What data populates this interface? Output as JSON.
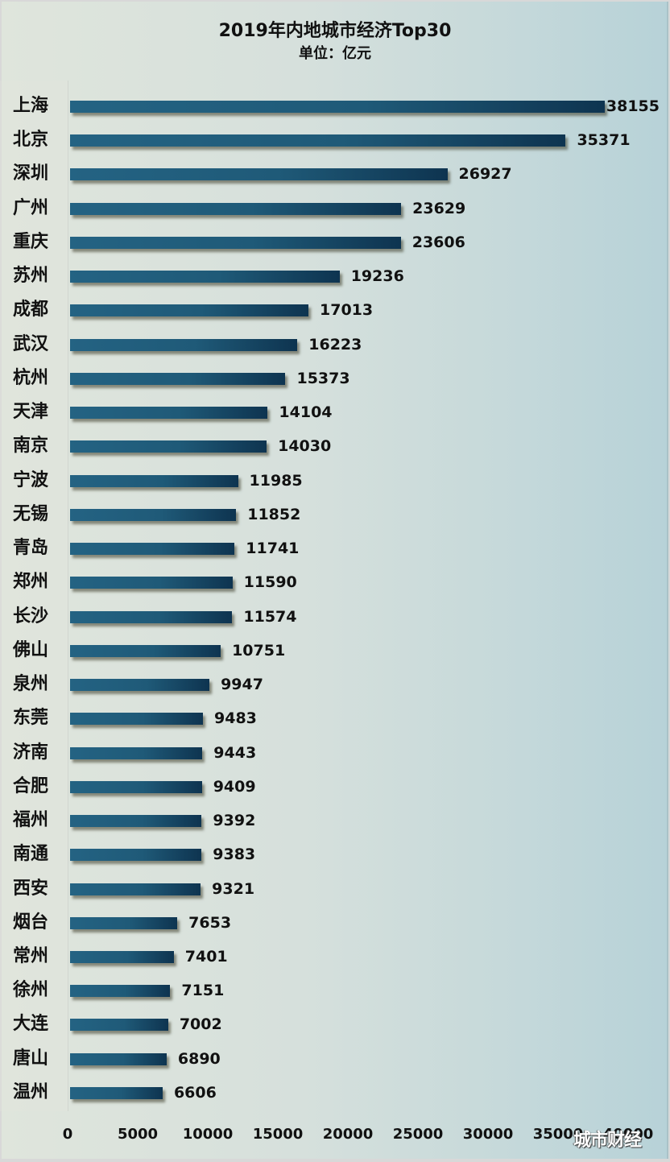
{
  "chart": {
    "title": "2019年内地城市经济Top30",
    "subtitle": "单位：亿元",
    "watermark": "城市财经"
  },
  "colors": {
    "bar_start": "#246383",
    "bar_end": "#0e3450",
    "bg_left": "#dfe5dc",
    "bg_right": "#b7d2d8"
  },
  "chart_data": {
    "type": "bar",
    "orientation": "horizontal",
    "title": "2019年内地城市经济Top30",
    "subtitle": "单位：亿元",
    "xlabel": "",
    "ylabel": "",
    "xlim": [
      0,
      40000
    ],
    "x_ticks": [
      "0",
      "5000",
      "10000",
      "15000",
      "20000",
      "25000",
      "30000",
      "35000",
      "40000"
    ],
    "grid": false,
    "legend": "none",
    "categories": [
      "上海",
      "北京",
      "深圳",
      "广州",
      "重庆",
      "苏州",
      "成都",
      "武汉",
      "杭州",
      "天津",
      "南京",
      "宁波",
      "无锡",
      "青岛",
      "郑州",
      "长沙",
      "佛山",
      "泉州",
      "东莞",
      "济南",
      "合肥",
      "福州",
      "南通",
      "西安",
      "烟台",
      "常州",
      "徐州",
      "大连",
      "唐山",
      "温州"
    ],
    "values": [
      38155,
      35371,
      26927,
      23629,
      23606,
      19236,
      17013,
      16223,
      15373,
      14104,
      14030,
      11985,
      11852,
      11741,
      11590,
      11574,
      10751,
      9947,
      9483,
      9443,
      9409,
      9392,
      9383,
      9321,
      7653,
      7401,
      7151,
      7002,
      6890,
      6606
    ],
    "value_labels": [
      "38155",
      "35371",
      "26927",
      "23629",
      "23606",
      "19236",
      "17013",
      "16223",
      "15373",
      "14104",
      "14030",
      "11985",
      "11852",
      "11741",
      "11590",
      "11574",
      "10751",
      "9947",
      "9483",
      "9443",
      "9409",
      "9392",
      "9383",
      "9321",
      "7653",
      "7401",
      "7151",
      "7002",
      "6890",
      "6606"
    ]
  }
}
